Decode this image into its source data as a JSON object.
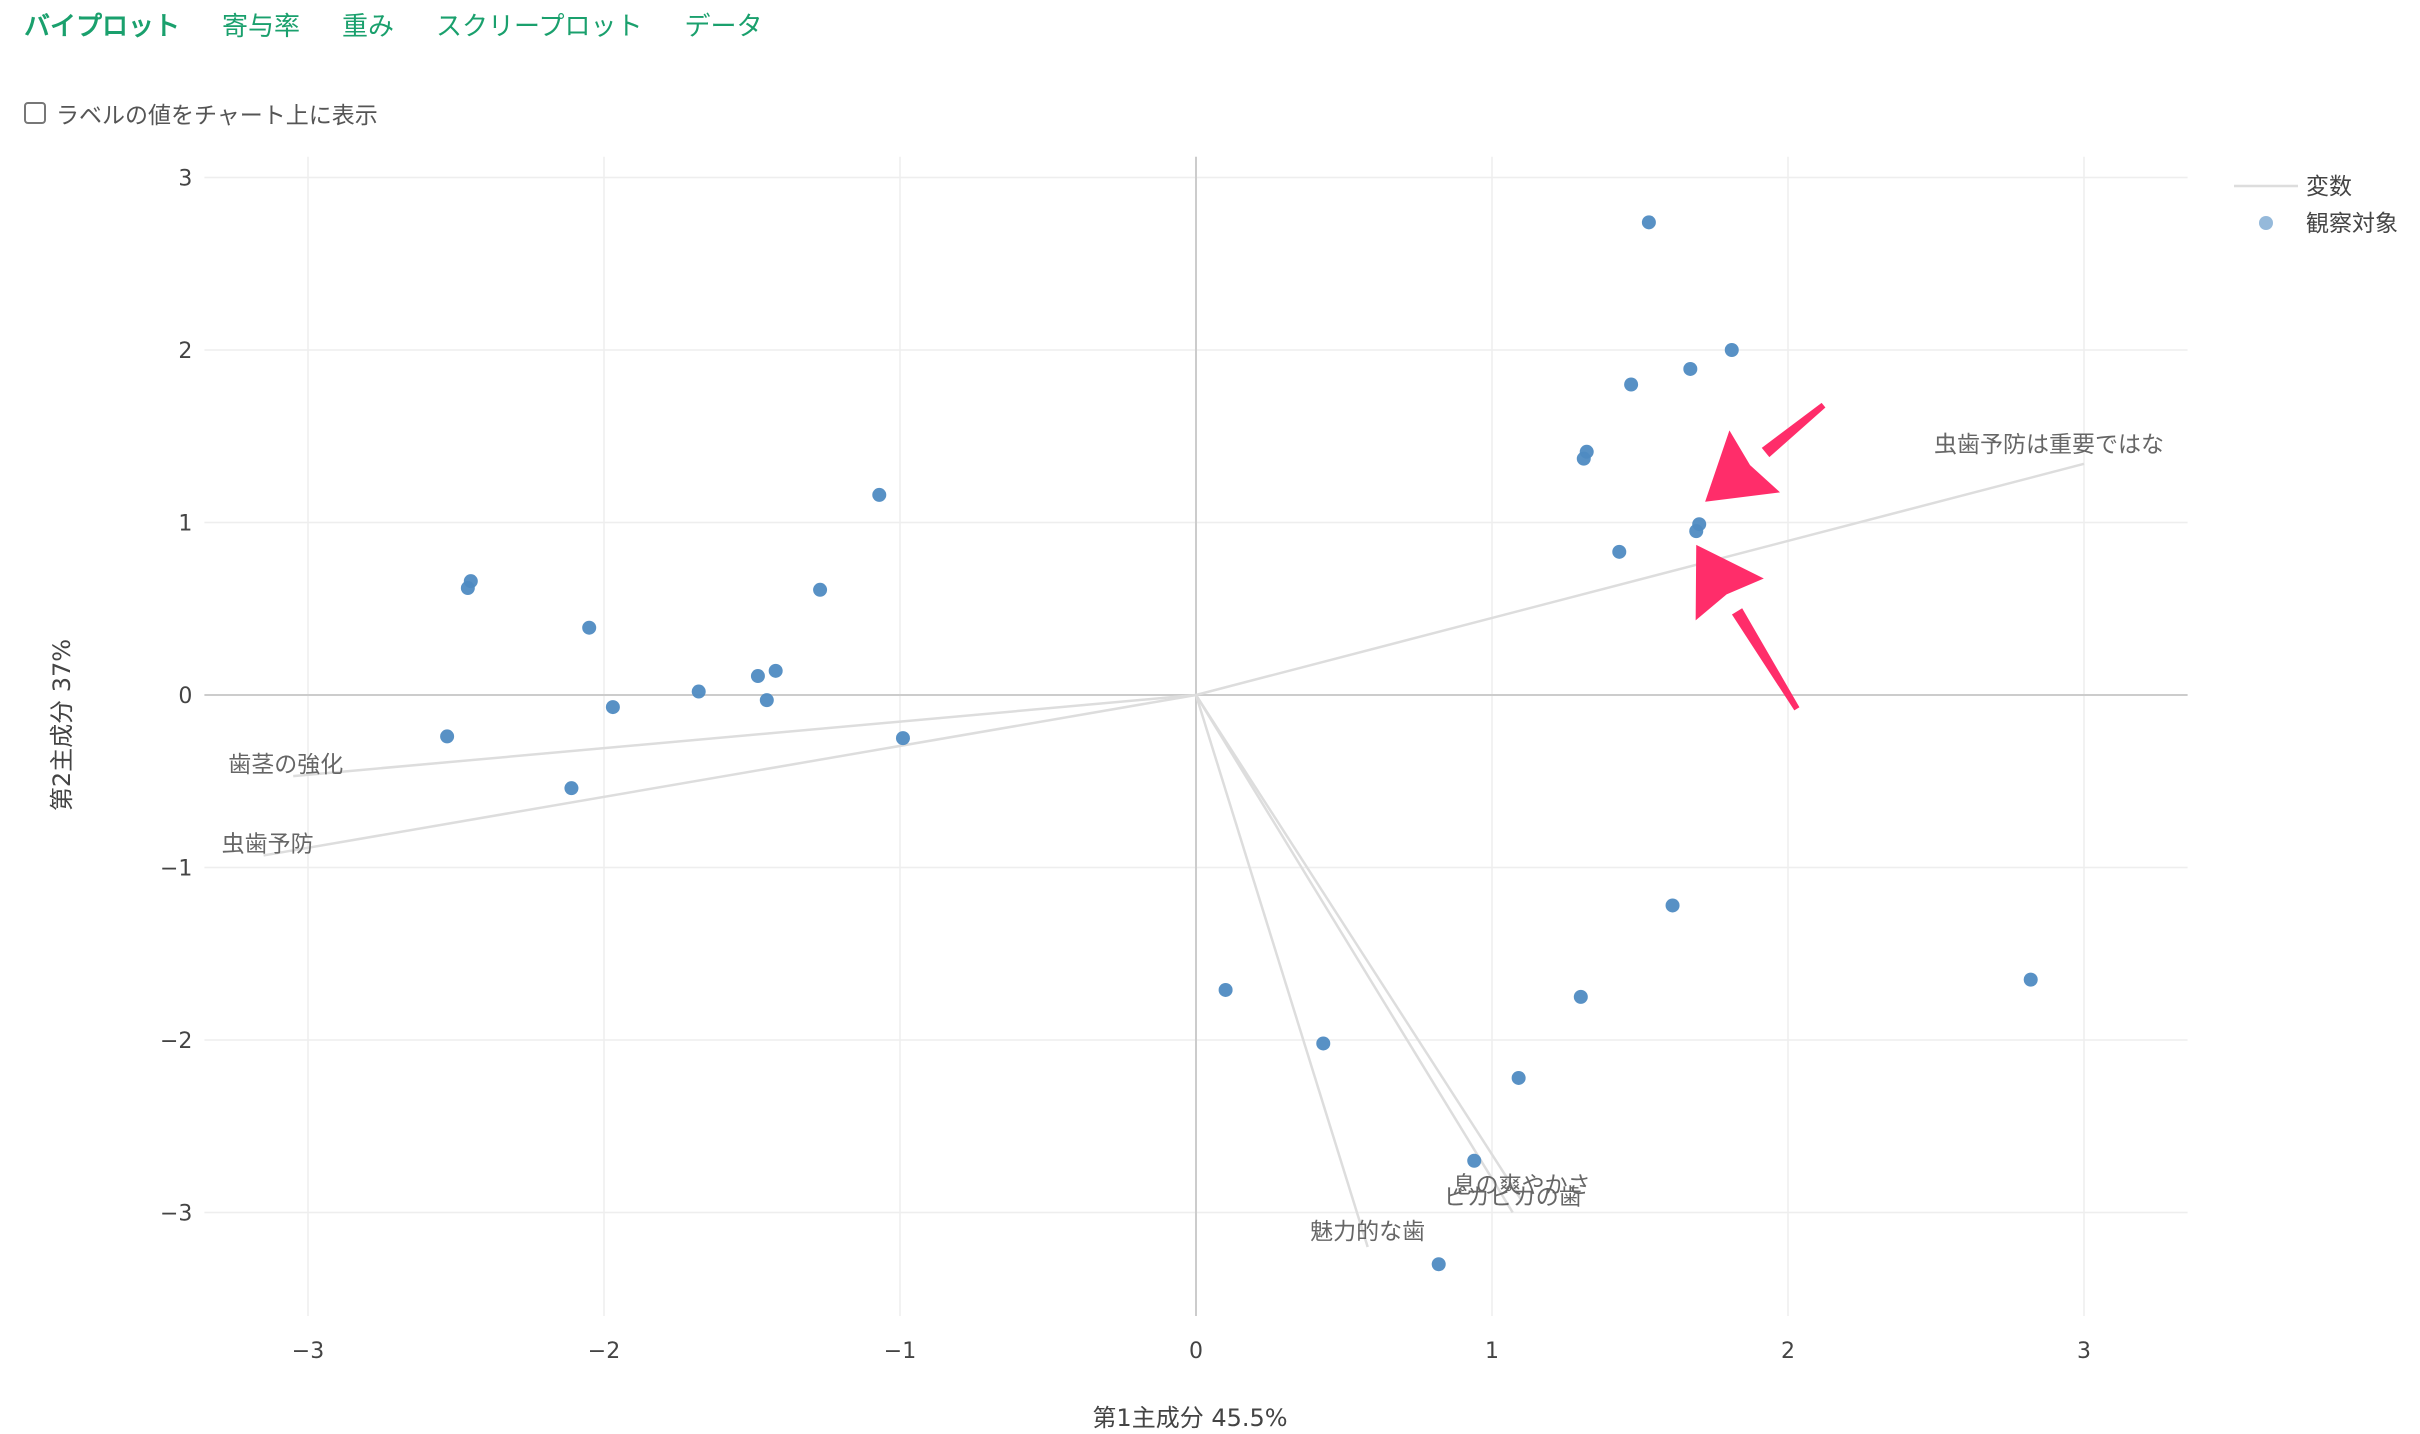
{
  "tabs": [
    {
      "label": "バイプロット",
      "active": true
    },
    {
      "label": "寄与率",
      "active": false
    },
    {
      "label": "重み",
      "active": false
    },
    {
      "label": "スクリープロット",
      "active": false
    },
    {
      "label": "データ",
      "active": false
    }
  ],
  "options": {
    "show_labels_checkbox": "ラベルの値をチャート上に表示",
    "show_labels_checked": false
  },
  "colors": {
    "tab_accent": "#1aa06d",
    "point": "#4f8bc2",
    "vector": "#dddddd",
    "arrow": "#ff2d6a"
  },
  "chart_data": {
    "type": "scatter",
    "subtype": "biplot",
    "xlabel": "第1主成分 45.5%",
    "ylabel": "第2主成分 37%",
    "xlim": [
      -3.35,
      3.35
    ],
    "ylim": [
      -3.6,
      3.12
    ],
    "xticks": [
      -3,
      -2,
      -1,
      0,
      1,
      2,
      3
    ],
    "xtick_labels": [
      "−3",
      "−2",
      "−1",
      "0",
      "1",
      "2",
      "3"
    ],
    "yticks": [
      3,
      2,
      1,
      0,
      -1,
      -2,
      -3
    ],
    "ytick_labels": [
      "3",
      "2",
      "1",
      "0",
      "−1",
      "−2",
      "−3"
    ],
    "grid": true,
    "legend": {
      "placement": "top-right",
      "entries": [
        {
          "label": "変数",
          "kind": "line"
        },
        {
          "label": "観察対象",
          "kind": "marker"
        }
      ]
    },
    "variables": [
      {
        "name": "虫歯予防は重要ではな",
        "x": 3.0,
        "y": 1.34
      },
      {
        "name": "歯茎の強化",
        "x": -3.05,
        "y": -0.47
      },
      {
        "name": "虫歯予防",
        "x": -3.15,
        "y": -0.93
      },
      {
        "name": "息の爽やかさ",
        "x": 1.1,
        "y": -2.93
      },
      {
        "name": "ピカピカの歯",
        "x": 1.07,
        "y": -3.0
      },
      {
        "name": "魅力的な歯",
        "x": 0.58,
        "y": -3.2
      }
    ],
    "series": [
      {
        "name": "観察対象",
        "points": [
          [
            1.53,
            2.74
          ],
          [
            1.81,
            2.0
          ],
          [
            1.67,
            1.89
          ],
          [
            1.47,
            1.8
          ],
          [
            1.32,
            1.41
          ],
          [
            1.31,
            1.37
          ],
          [
            1.43,
            0.83
          ],
          [
            1.7,
            0.99
          ],
          [
            1.69,
            0.95
          ],
          [
            -1.07,
            1.16
          ],
          [
            -2.45,
            0.66
          ],
          [
            -2.46,
            0.62
          ],
          [
            -2.05,
            0.39
          ],
          [
            -1.27,
            0.61
          ],
          [
            -1.68,
            0.02
          ],
          [
            -1.48,
            0.11
          ],
          [
            -1.42,
            0.14
          ],
          [
            -1.45,
            -0.03
          ],
          [
            -1.97,
            -0.07
          ],
          [
            -2.53,
            -0.24
          ],
          [
            -0.99,
            -0.25
          ],
          [
            -2.11,
            -0.54
          ],
          [
            1.61,
            -1.22
          ],
          [
            2.82,
            -1.65
          ],
          [
            0.1,
            -1.71
          ],
          [
            1.3,
            -1.75
          ],
          [
            0.43,
            -2.02
          ],
          [
            1.09,
            -2.22
          ],
          [
            0.94,
            -2.7
          ],
          [
            0.82,
            -3.3
          ]
        ]
      }
    ],
    "annotations": [
      {
        "type": "arrow",
        "from": [
          2.12,
          1.68
        ],
        "to": [
          1.72,
          1.12
        ]
      },
      {
        "type": "arrow",
        "from": [
          2.03,
          -0.08
        ],
        "to": [
          1.69,
          0.87
        ]
      }
    ]
  }
}
